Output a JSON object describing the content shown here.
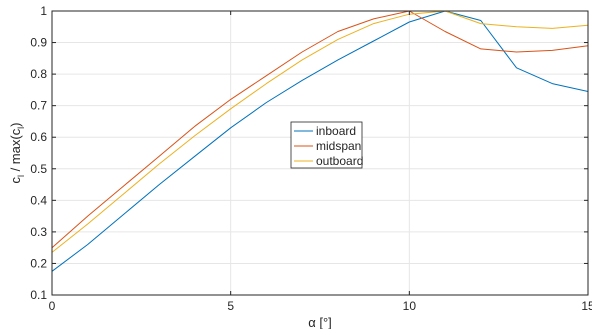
{
  "chart_data": {
    "type": "line",
    "xlabel": "α [°]",
    "ylabel": {
      "prefix": "c",
      "sub1": "l",
      "middle": " / max(c",
      "sub2": "l",
      "suffix": ")"
    },
    "xlim": [
      0,
      15
    ],
    "ylim": [
      0.1,
      1.0
    ],
    "xticks": [
      0,
      5,
      10,
      15
    ],
    "xtick_labels": [
      "0",
      "5",
      "10",
      "15"
    ],
    "yticks": [
      0.1,
      0.2,
      0.3,
      0.4,
      0.5,
      0.6,
      0.7,
      0.8,
      0.9,
      1.0
    ],
    "ytick_labels": [
      "0.1",
      "0.2",
      "0.3",
      "0.4",
      "0.5",
      "0.6",
      "0.7",
      "0.8",
      "0.9",
      "1"
    ],
    "grid": true,
    "legend_position": "center",
    "series": [
      {
        "name": "inboard",
        "color": "#0072BD",
        "x": [
          0,
          1,
          2,
          3,
          4,
          5,
          6,
          7,
          8,
          9,
          10,
          11,
          12,
          13,
          14,
          15
        ],
        "y": [
          0.175,
          0.26,
          0.355,
          0.45,
          0.54,
          0.63,
          0.71,
          0.78,
          0.845,
          0.905,
          0.965,
          1.0,
          0.97,
          0.82,
          0.77,
          0.745
        ]
      },
      {
        "name": "midspan",
        "color": "#D95319",
        "x": [
          0,
          1,
          2,
          3,
          4,
          5,
          6,
          7,
          8,
          9,
          10,
          11,
          12,
          13,
          14,
          15
        ],
        "y": [
          0.25,
          0.35,
          0.445,
          0.54,
          0.635,
          0.72,
          0.795,
          0.87,
          0.935,
          0.975,
          1.0,
          0.935,
          0.88,
          0.87,
          0.875,
          0.89
        ]
      },
      {
        "name": "outboard",
        "color": "#EDB120",
        "x": [
          0,
          1,
          2,
          3,
          4,
          5,
          6,
          7,
          8,
          9,
          10,
          11,
          12,
          13,
          14,
          15
        ],
        "y": [
          0.235,
          0.325,
          0.42,
          0.515,
          0.605,
          0.69,
          0.77,
          0.845,
          0.91,
          0.96,
          0.99,
          1.0,
          0.96,
          0.95,
          0.945,
          0.955
        ]
      }
    ]
  }
}
